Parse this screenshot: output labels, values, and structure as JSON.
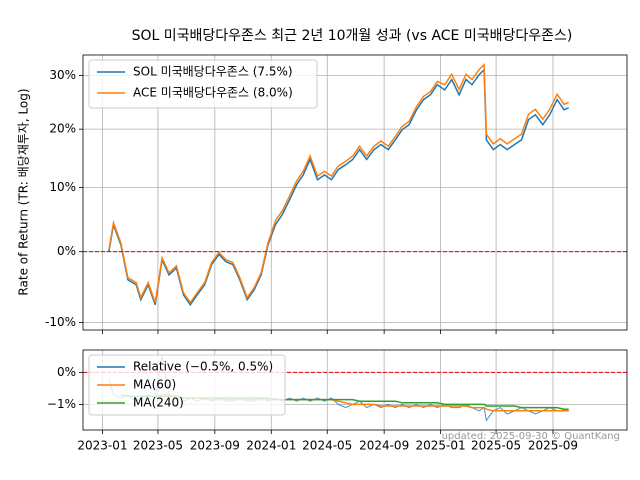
{
  "chart_data": [
    {
      "type": "line",
      "title": "SOL 미국배당다우존스 최근 2년 10개월 성과 (vs ACE 미국배당다우존스)",
      "ylabel": "Rate of Return (TR: 배당재투자, Log)",
      "yscale": "log",
      "grid": true,
      "legend": "upper left",
      "hline": 0,
      "xlim": [
        "2022-11-20",
        "2026-02-08"
      ],
      "ylim": [
        -11,
        34
      ],
      "yticks": [
        {
          "value": -10,
          "label": "-10%"
        },
        {
          "value": 0,
          "label": "0%"
        },
        {
          "value": 10,
          "label": "10%"
        },
        {
          "value": 20,
          "label": "20%"
        },
        {
          "value": 30,
          "label": "30%"
        }
      ],
      "x": [
        "2023-01-15",
        "2023-01-25",
        "2023-02-10",
        "2023-02-25",
        "2023-03-15",
        "2023-03-25",
        "2023-04-10",
        "2023-04-25",
        "2023-05-10",
        "2023-05-25",
        "2023-06-10",
        "2023-06-25",
        "2023-07-10",
        "2023-07-25",
        "2023-08-10",
        "2023-08-25",
        "2023-09-10",
        "2023-09-25",
        "2023-10-10",
        "2023-10-25",
        "2023-11-10",
        "2023-11-25",
        "2023-12-10",
        "2023-12-25",
        "2024-01-10",
        "2024-01-25",
        "2024-02-10",
        "2024-02-25",
        "2024-03-10",
        "2024-03-25",
        "2024-04-10",
        "2024-04-25",
        "2024-05-10",
        "2024-05-25",
        "2024-06-10",
        "2024-06-25",
        "2024-07-10",
        "2024-07-25",
        "2024-08-10",
        "2024-08-25",
        "2024-09-10",
        "2024-09-25",
        "2024-10-10",
        "2024-10-25",
        "2024-11-10",
        "2024-11-25",
        "2024-12-10",
        "2024-12-25",
        "2025-01-10",
        "2025-01-25",
        "2025-02-10",
        "2025-02-25",
        "2025-03-10",
        "2025-03-25",
        "2025-04-05",
        "2025-04-10",
        "2025-04-25",
        "2025-05-10",
        "2025-05-25",
        "2025-06-10",
        "2025-06-25",
        "2025-07-10",
        "2025-07-25",
        "2025-08-10",
        "2025-08-25",
        "2025-09-10",
        "2025-09-25",
        "2025-10-05"
      ],
      "series": [
        {
          "name": "SOL 미국배당다우존스 (7.5%)",
          "color": "#1f77b4",
          "values": [
            0,
            4.1,
            1.0,
            -4.1,
            -4.8,
            -6.9,
            -4.8,
            -7.6,
            -1.2,
            -3.4,
            -2.4,
            -6.2,
            -7.6,
            -6.2,
            -4.8,
            -1.9,
            -0.4,
            -1.5,
            -1.9,
            -4.1,
            -6.9,
            -5.5,
            -3.4,
            1.0,
            4.1,
            5.7,
            8.1,
            10.5,
            12.1,
            14.7,
            11.3,
            12.1,
            11.3,
            13.0,
            13.8,
            14.7,
            16.4,
            14.7,
            16.4,
            17.3,
            16.4,
            18.1,
            19.9,
            20.8,
            23.5,
            25.4,
            26.3,
            28.2,
            27.2,
            29.2,
            26.3,
            29.2,
            28.2,
            30.1,
            31.1,
            18.1,
            16.4,
            17.3,
            16.4,
            17.3,
            18.1,
            21.7,
            22.6,
            20.8,
            22.6,
            25.4,
            23.5,
            23.9
          ]
        },
        {
          "name": "ACE 미국배당다우존스 (8.0%)",
          "color": "#ff7f0e",
          "values": [
            0.3,
            4.4,
            1.3,
            -3.8,
            -4.5,
            -6.6,
            -4.5,
            -7.3,
            -0.9,
            -3.1,
            -2.1,
            -5.9,
            -7.3,
            -5.9,
            -4.5,
            -1.6,
            -0.1,
            -1.2,
            -1.6,
            -3.8,
            -6.6,
            -5.2,
            -3.1,
            1.3,
            4.7,
            6.3,
            8.7,
            11.1,
            12.7,
            15.3,
            11.9,
            12.7,
            11.9,
            13.6,
            14.4,
            15.3,
            17.0,
            15.3,
            17.0,
            17.9,
            17.0,
            18.7,
            20.5,
            21.4,
            24.1,
            26.0,
            26.9,
            28.8,
            28.2,
            30.2,
            27.3,
            30.2,
            29.2,
            31.1,
            32.1,
            19.1,
            17.4,
            18.3,
            17.4,
            18.3,
            19.1,
            22.7,
            23.6,
            21.8,
            23.6,
            26.4,
            24.5,
            24.9
          ]
        }
      ]
    },
    {
      "type": "line",
      "grid": true,
      "legend": "upper left",
      "hline": 0,
      "annotation": "updated: 2025-09-30 © QuantKang",
      "xlim": [
        "2022-11-20",
        "2026-02-08"
      ],
      "xticks": [
        {
          "value": "2023-01-01",
          "label": "2023-01"
        },
        {
          "value": "2023-05-01",
          "label": "2023-05"
        },
        {
          "value": "2023-09-01",
          "label": "2023-09"
        },
        {
          "value": "2024-01-01",
          "label": "2024-01"
        },
        {
          "value": "2024-05-01",
          "label": "2024-05"
        },
        {
          "value": "2024-09-01",
          "label": "2024-09"
        },
        {
          "value": "2025-01-01",
          "label": "2025-01"
        },
        {
          "value": "2025-05-01",
          "label": "2025-05"
        },
        {
          "value": "2025-09-01",
          "label": "2025-09"
        }
      ],
      "ylim": [
        -1.8,
        0.7
      ],
      "yticks": [
        {
          "value": -1,
          "label": "−1%"
        },
        {
          "value": 0,
          "label": "0%"
        }
      ],
      "x": [
        "2023-01-15",
        "2023-01-25",
        "2023-02-10",
        "2023-02-25",
        "2023-03-15",
        "2023-03-25",
        "2023-04-10",
        "2023-04-25",
        "2023-05-10",
        "2023-05-25",
        "2023-06-10",
        "2023-06-25",
        "2023-07-10",
        "2023-07-25",
        "2023-08-10",
        "2023-08-25",
        "2023-09-10",
        "2023-09-25",
        "2023-10-10",
        "2023-10-25",
        "2023-11-10",
        "2023-11-25",
        "2023-12-10",
        "2023-12-25",
        "2024-01-10",
        "2024-01-25",
        "2024-02-10",
        "2024-02-25",
        "2024-03-10",
        "2024-03-25",
        "2024-04-10",
        "2024-04-25",
        "2024-05-10",
        "2024-05-25",
        "2024-06-10",
        "2024-06-25",
        "2024-07-10",
        "2024-07-25",
        "2024-08-10",
        "2024-08-25",
        "2024-09-10",
        "2024-09-25",
        "2024-10-10",
        "2024-10-25",
        "2024-11-10",
        "2024-11-25",
        "2024-12-10",
        "2024-12-25",
        "2025-01-10",
        "2025-01-25",
        "2025-02-10",
        "2025-02-25",
        "2025-03-10",
        "2025-03-25",
        "2025-04-05",
        "2025-04-10",
        "2025-04-25",
        "2025-05-10",
        "2025-05-25",
        "2025-06-10",
        "2025-06-25",
        "2025-07-10",
        "2025-07-25",
        "2025-08-10",
        "2025-08-25",
        "2025-09-10",
        "2025-09-25",
        "2025-10-05"
      ],
      "series": [
        {
          "name": "Relative (−0.5%, 0.5%)",
          "color": "#1f77b4",
          "values": [
            -0.2,
            -0.7,
            -0.8,
            -0.7,
            -0.9,
            -0.8,
            -0.7,
            -0.8,
            0.5,
            -0.7,
            -0.8,
            -0.9,
            -0.8,
            -0.9,
            -0.8,
            -0.9,
            -0.8,
            -0.9,
            -0.9,
            -0.8,
            -0.9,
            -0.9,
            -0.8,
            -0.9,
            -0.8,
            -0.9,
            -0.8,
            -0.9,
            -0.8,
            -0.9,
            -0.8,
            -0.9,
            -0.8,
            -1.0,
            -1.1,
            -1.0,
            -0.9,
            -1.1,
            -1.0,
            -1.1,
            -1.0,
            -1.1,
            -1.0,
            -1.1,
            -1.0,
            -1.1,
            -1.0,
            -1.1,
            -1.0,
            -1.1,
            -1.1,
            -1.0,
            -1.1,
            -1.2,
            -1.1,
            -1.5,
            -1.2,
            -1.1,
            -1.3,
            -1.2,
            -1.1,
            -1.2,
            -1.3,
            -1.2,
            -1.1,
            -1.2,
            -1.2,
            -1.2
          ]
        },
        {
          "name": "MA(60)",
          "color": "#ff7f0e",
          "values": [
            null,
            null,
            null,
            null,
            null,
            -0.75,
            -0.75,
            -0.75,
            -0.7,
            -0.7,
            -0.75,
            -0.8,
            -0.8,
            -0.8,
            -0.85,
            -0.85,
            -0.85,
            -0.85,
            -0.85,
            -0.85,
            -0.85,
            -0.85,
            -0.85,
            -0.85,
            -0.85,
            -0.85,
            -0.85,
            -0.85,
            -0.85,
            -0.85,
            -0.85,
            -0.85,
            -0.85,
            -0.9,
            -0.95,
            -1.0,
            -1.0,
            -1.0,
            -1.0,
            -1.05,
            -1.05,
            -1.05,
            -1.05,
            -1.05,
            -1.05,
            -1.05,
            -1.05,
            -1.05,
            -1.05,
            -1.05,
            -1.05,
            -1.05,
            -1.1,
            -1.1,
            -1.1,
            -1.15,
            -1.2,
            -1.2,
            -1.2,
            -1.2,
            -1.2,
            -1.2,
            -1.2,
            -1.2,
            -1.2,
            -1.2,
            -1.2,
            -1.2
          ]
        },
        {
          "name": "MA(240)",
          "color": "#2ca02c",
          "values": [
            null,
            null,
            -0.7,
            -0.75,
            -0.75,
            -0.75,
            -0.75,
            -0.75,
            -0.75,
            -0.75,
            -0.75,
            -0.8,
            -0.8,
            -0.8,
            -0.8,
            -0.8,
            -0.8,
            -0.8,
            -0.8,
            -0.8,
            -0.8,
            -0.8,
            -0.8,
            -0.8,
            -0.85,
            -0.85,
            -0.85,
            -0.85,
            -0.85,
            -0.85,
            -0.85,
            -0.85,
            -0.85,
            -0.85,
            -0.85,
            -0.85,
            -0.9,
            -0.9,
            -0.9,
            -0.9,
            -0.9,
            -0.9,
            -0.95,
            -0.95,
            -0.95,
            -0.95,
            -0.95,
            -0.95,
            -1.0,
            -1.0,
            -1.0,
            -1.0,
            -1.0,
            -1.0,
            -1.0,
            -1.05,
            -1.05,
            -1.05,
            -1.05,
            -1.05,
            -1.1,
            -1.1,
            -1.1,
            -1.1,
            -1.1,
            -1.1,
            -1.15,
            -1.15
          ]
        }
      ]
    }
  ]
}
